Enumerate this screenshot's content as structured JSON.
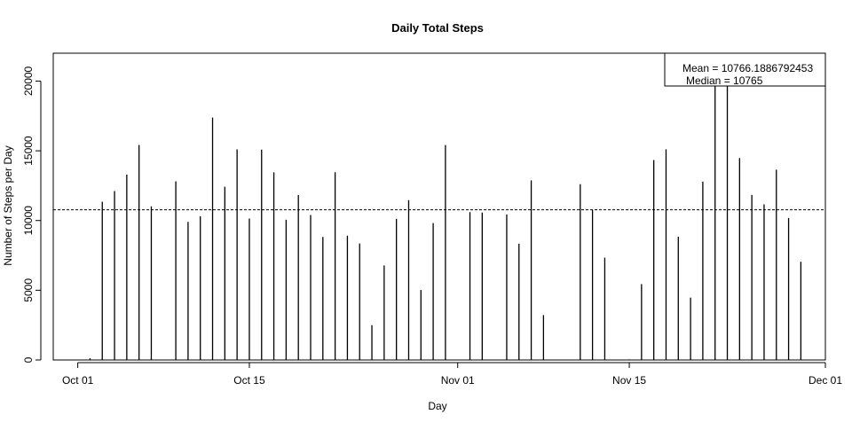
{
  "chart_data": {
    "type": "bar",
    "title": "Daily Total Steps",
    "xlabel": "Day",
    "ylabel": "Number of Steps per Day",
    "x_tick_labels": [
      "Oct 01",
      "Oct 15",
      "Nov 01",
      "Nov 15",
      "Dec 01"
    ],
    "x_tick_dates": [
      "2012-10-01",
      "2012-10-15",
      "2012-11-01",
      "2012-11-15",
      "2012-12-01"
    ],
    "xlim": [
      "2012-09-29",
      "2012-12-01"
    ],
    "y_tick_labels": [
      "0",
      "5000",
      "10000",
      "15000",
      "20000"
    ],
    "y_ticks": [
      0,
      5000,
      10000,
      15000,
      20000
    ],
    "ylim": [
      0,
      22000
    ],
    "grid": false,
    "mean_line": 10766.19,
    "legend": {
      "position": "top-right",
      "lines": [
        "Mean = 10766.1886792453",
        "Median = 10765"
      ]
    },
    "colors": {
      "bars": "#000000",
      "mean_line": "#000000"
    },
    "x": [
      "2012-10-02",
      "2012-10-03",
      "2012-10-04",
      "2012-10-05",
      "2012-10-06",
      "2012-10-07",
      "2012-10-09",
      "2012-10-10",
      "2012-10-11",
      "2012-10-12",
      "2012-10-13",
      "2012-10-14",
      "2012-10-15",
      "2012-10-16",
      "2012-10-17",
      "2012-10-18",
      "2012-10-19",
      "2012-10-20",
      "2012-10-21",
      "2012-10-22",
      "2012-10-23",
      "2012-10-24",
      "2012-10-25",
      "2012-10-26",
      "2012-10-27",
      "2012-10-28",
      "2012-10-29",
      "2012-10-30",
      "2012-10-31",
      "2012-11-02",
      "2012-11-03",
      "2012-11-05",
      "2012-11-06",
      "2012-11-07",
      "2012-11-08",
      "2012-11-11",
      "2012-11-12",
      "2012-11-13",
      "2012-11-15",
      "2012-11-16",
      "2012-11-17",
      "2012-11-18",
      "2012-11-19",
      "2012-11-20",
      "2012-11-21",
      "2012-11-22",
      "2012-11-23",
      "2012-11-24",
      "2012-11-25",
      "2012-11-26",
      "2012-11-27",
      "2012-11-28",
      "2012-11-29"
    ],
    "values": [
      126,
      11352,
      12116,
      13294,
      15420,
      11015,
      12811,
      9900,
      10304,
      17382,
      12426,
      15098,
      10139,
      15084,
      13452,
      10056,
      11829,
      10395,
      8821,
      13460,
      8918,
      8355,
      2492,
      6778,
      10119,
      11458,
      5018,
      9819,
      15414,
      10600,
      10571,
      10439,
      8334,
      12883,
      3219,
      12608,
      10765,
      7336,
      41,
      5441,
      14339,
      15110,
      8841,
      4472,
      12787,
      20427,
      21194,
      14478,
      11834,
      11162,
      13646,
      10183,
      7047
    ]
  }
}
